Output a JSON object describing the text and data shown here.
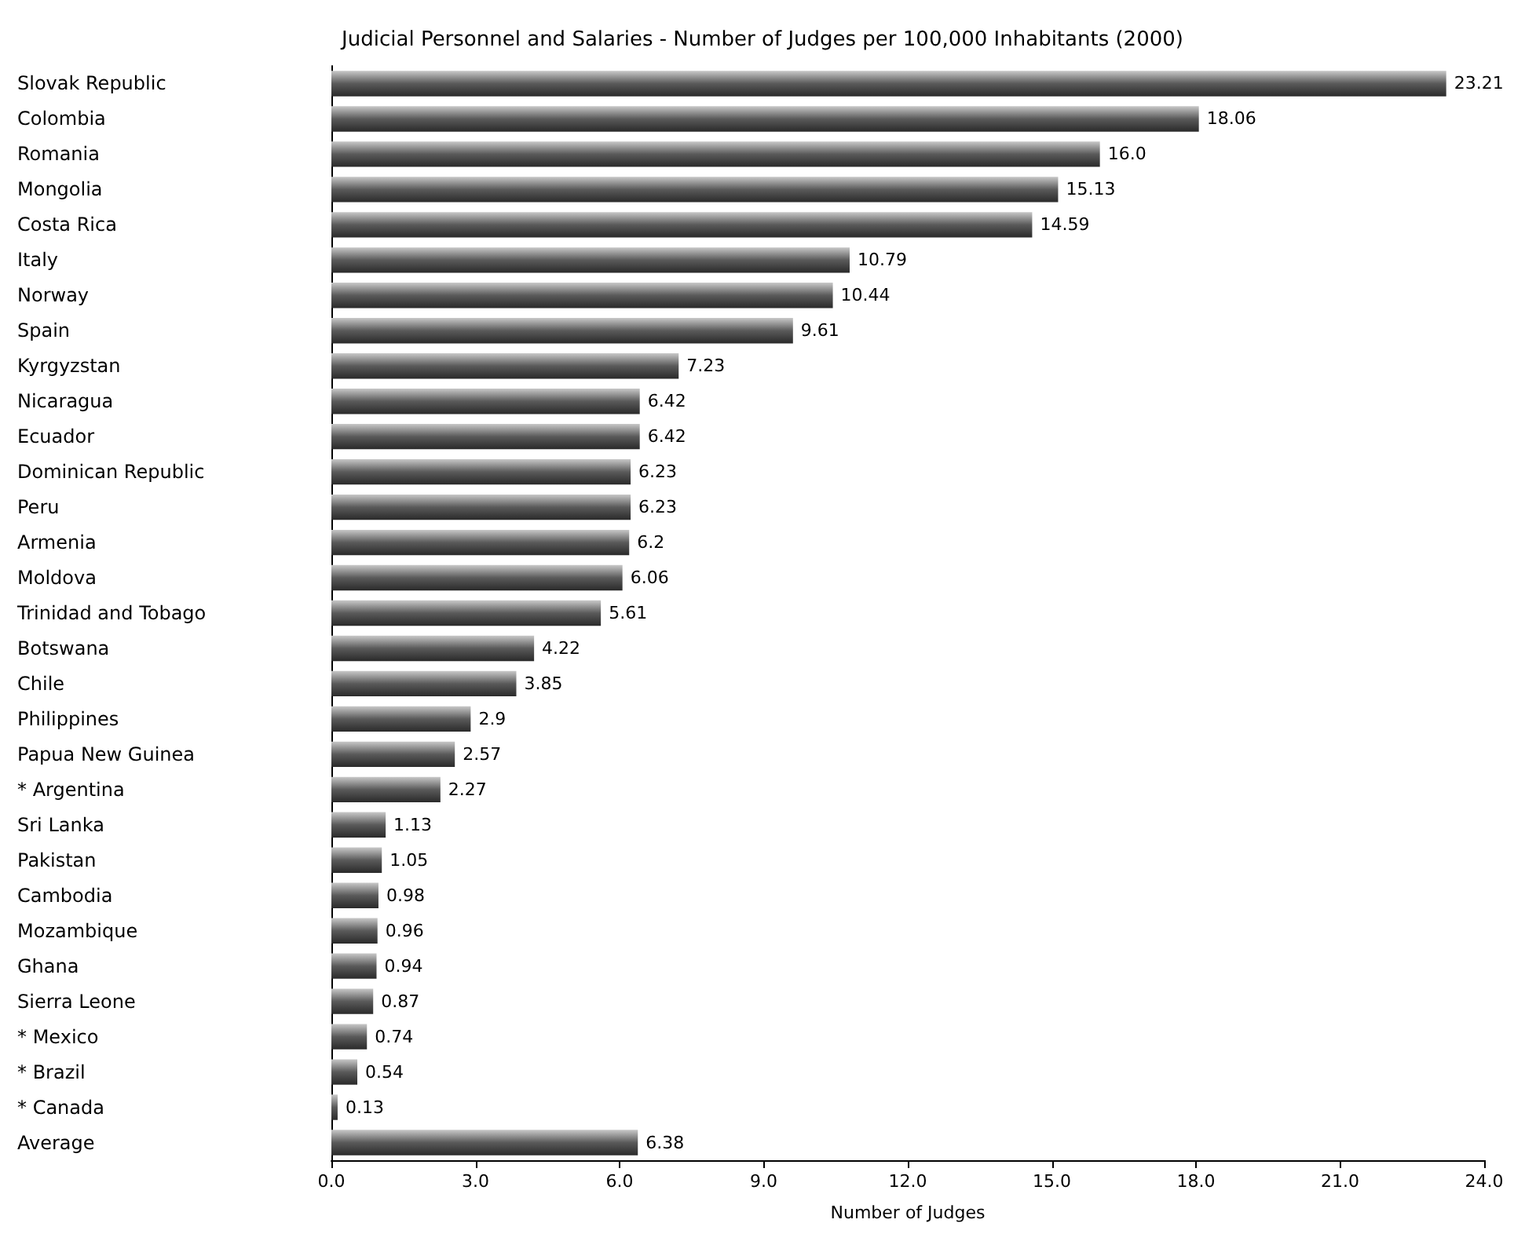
{
  "chart_data": {
    "type": "bar",
    "orientation": "horizontal",
    "title": "Judicial Personnel and Salaries - Number of Judges per 100,000 Inhabitants (2000)",
    "xlabel": "Number of Judges",
    "categories": [
      "Slovak Republic",
      "Colombia",
      "Romania",
      "Mongolia",
      "Costa Rica",
      "Italy",
      "Norway",
      "Spain",
      "Kyrgyzstan",
      "Nicaragua",
      "Ecuador",
      "Dominican Republic",
      "Peru",
      "Armenia",
      "Moldova",
      "Trinidad and Tobago",
      "Botswana",
      "Chile",
      "Philippines",
      "Papua New Guinea",
      "* Argentina",
      "Sri Lanka",
      "Pakistan",
      "Cambodia",
      "Mozambique",
      "Ghana",
      "Sierra Leone",
      "* Mexico",
      "* Brazil",
      "* Canada",
      "Average"
    ],
    "values": [
      23.21,
      18.06,
      16.0,
      15.13,
      14.59,
      10.79,
      10.44,
      9.61,
      7.23,
      6.42,
      6.42,
      6.23,
      6.23,
      6.2,
      6.06,
      5.61,
      4.22,
      3.85,
      2.9,
      2.57,
      2.27,
      1.13,
      1.05,
      0.98,
      0.96,
      0.94,
      0.87,
      0.74,
      0.54,
      0.13,
      6.38
    ],
    "value_labels": [
      "23.21",
      "18.06",
      "16.0",
      "15.13",
      "14.59",
      "10.79",
      "10.44",
      "9.61",
      "7.23",
      "6.42",
      "6.42",
      "6.23",
      "6.23",
      "6.2",
      "6.06",
      "5.61",
      "4.22",
      "3.85",
      "2.9",
      "2.57",
      "2.27",
      "1.13",
      "1.05",
      "0.98",
      "0.96",
      "0.94",
      "0.87",
      "0.74",
      "0.54",
      "0.13",
      "6.38"
    ],
    "color": "#5a5a5a",
    "xlim": [
      0,
      24
    ],
    "xticks": [
      {
        "value": 0,
        "label": "0.0"
      },
      {
        "value": 3,
        "label": "3.0"
      },
      {
        "value": 6,
        "label": "6.0"
      },
      {
        "value": 9,
        "label": "9.0"
      },
      {
        "value": 12,
        "label": "12.0"
      },
      {
        "value": 15,
        "label": "15.0"
      },
      {
        "value": 18,
        "label": "18.0"
      },
      {
        "value": 21,
        "label": "21.0"
      },
      {
        "value": 24,
        "label": "24.0"
      }
    ],
    "grid": false
  }
}
